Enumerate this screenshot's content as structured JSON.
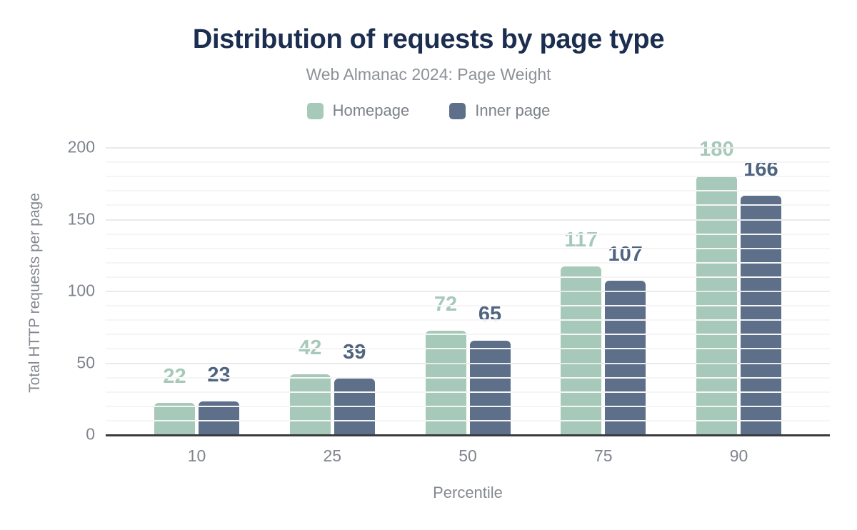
{
  "header": {
    "title": "Distribution of requests by page type",
    "subtitle": "Web Almanac 2024: Page Weight"
  },
  "chart_data": {
    "type": "bar",
    "title": "Distribution of requests by page type",
    "subtitle": "Web Almanac 2024: Page Weight",
    "categories": [
      "10",
      "25",
      "50",
      "75",
      "90"
    ],
    "series": [
      {
        "name": "Homepage",
        "color": "#a7c9b9",
        "label_color": "#a7c9b9",
        "values": [
          22,
          42,
          72,
          117,
          180
        ]
      },
      {
        "name": "Inner page",
        "color": "#5e7089",
        "label_color": "#4f6480",
        "values": [
          23,
          39,
          65,
          107,
          166
        ]
      }
    ],
    "xlabel": "Percentile",
    "ylabel": "Total HTTP requests per page",
    "ylim": [
      0,
      200
    ],
    "yticks": [
      0,
      50,
      100,
      150,
      200
    ],
    "minor_tick_step": 10,
    "grid": true,
    "legend_position": "top"
  },
  "colors": {
    "title_text": "#1c2e4f",
    "subtitle_text": "#8d9197",
    "legend_text": "#7c8189",
    "tick_text": "#7f848d",
    "axis_title_text": "#85898f",
    "axis_line": "#3b3b3f",
    "major_gridline": "#e9eaeb",
    "minor_gridline": "#f5f5f6",
    "background": "#ffffff"
  }
}
